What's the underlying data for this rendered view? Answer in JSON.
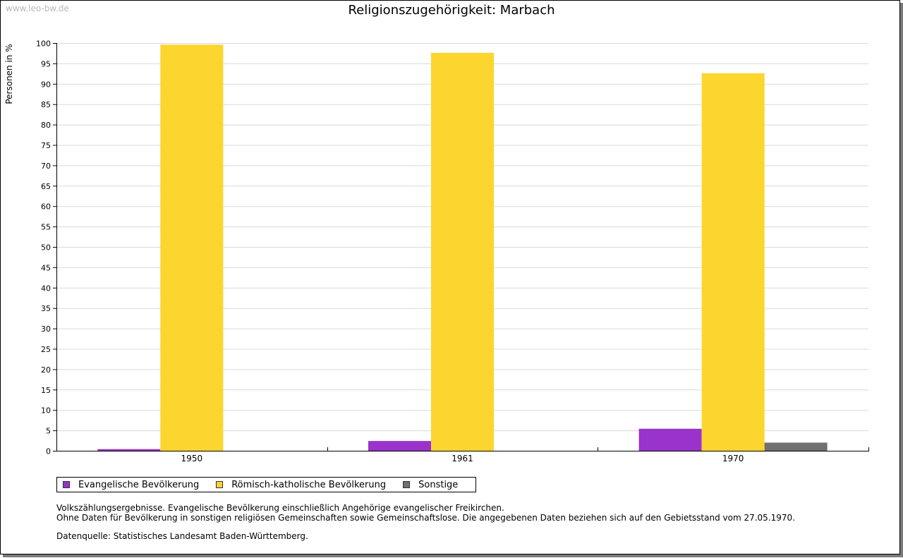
{
  "watermark": "www.leo-bw.de",
  "chart_data": {
    "type": "bar",
    "title": "Religionszugehörigkeit: Marbach",
    "xlabel": "",
    "ylabel": "Personen in %",
    "ylim": [
      0,
      100
    ],
    "yticks": [
      0,
      5,
      10,
      15,
      20,
      25,
      30,
      35,
      40,
      45,
      50,
      55,
      60,
      65,
      70,
      75,
      80,
      85,
      90,
      95,
      100
    ],
    "grid": true,
    "categories": [
      "1950",
      "1961",
      "1970"
    ],
    "series": [
      {
        "name": "Evangelische Bevölkerung",
        "color": "#9933cc",
        "values": [
          0.4,
          2.4,
          5.4
        ]
      },
      {
        "name": "Römisch-katholische Bevölkerung",
        "color": "#fcd52e",
        "values": [
          99.6,
          97.6,
          92.6
        ]
      },
      {
        "name": "Sonstige",
        "color": "#707070",
        "values": [
          0,
          0,
          2.0
        ]
      }
    ],
    "legend_position": "bottom-left"
  },
  "notes": {
    "line1": "Volkszählungsergebnisse. Evangelische Bevölkerung einschließlich Angehörige evangelischer Freikirchen.",
    "line2": "Ohne Daten für Bevölkerung in sonstigen religiösen Gemeinschaften sowie Gemeinschaftslose. Die angegebenen Daten beziehen sich auf den Gebietsstand vom 27.05.1970.",
    "source": "Datenquelle: Statistisches Landesamt Baden-Württemberg."
  }
}
